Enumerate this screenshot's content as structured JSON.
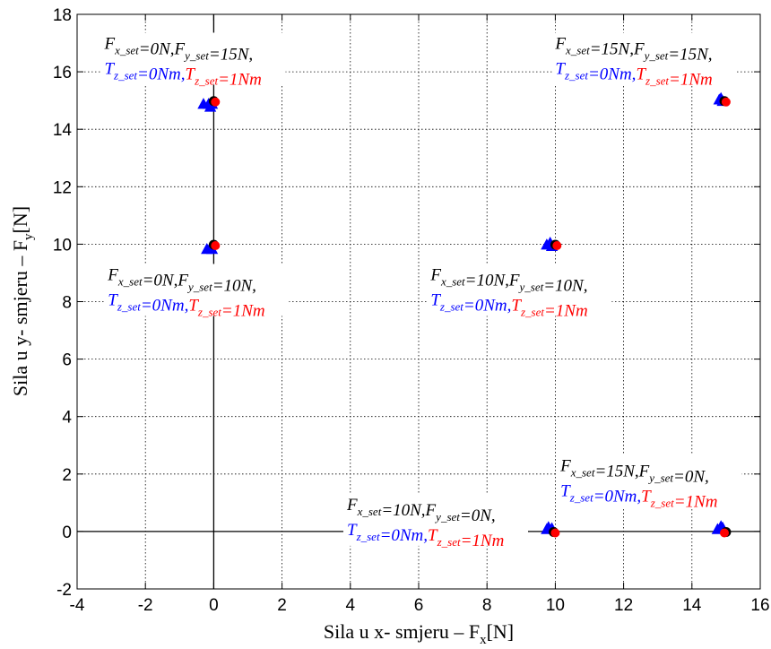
{
  "chart_data": {
    "type": "scatter",
    "xlabel": {
      "main": "Sila u x- smjeru  –  F",
      "sub": "x",
      "unit": "[N]"
    },
    "ylabel": {
      "main": "Sila u y- smjeru  –  F",
      "sub": "y",
      "unit": "[N]"
    },
    "xlim": [
      -4,
      16
    ],
    "ylim": [
      -2,
      18
    ],
    "xticks": [
      -4,
      -2,
      0,
      2,
      4,
      6,
      8,
      10,
      12,
      14,
      16
    ],
    "yticks": [
      -2,
      0,
      2,
      4,
      6,
      8,
      10,
      12,
      14,
      16,
      18
    ],
    "grid": true,
    "zero_lines": true,
    "colors": {
      "blue": "#0000ff",
      "red": "#ff0000",
      "black": "#000000"
    },
    "groups": [
      {
        "target": [
          0,
          15
        ],
        "blue": [
          [
            -0.3,
            14.85
          ],
          [
            -0.15,
            14.85
          ],
          [
            -0.05,
            14.85
          ],
          [
            -0.1,
            14.75
          ]
        ],
        "red": [
          [
            0.05,
            14.95
          ]
        ],
        "black": [
          [
            0.0,
            14.98
          ]
        ],
        "annotation": {
          "ax": -3.2,
          "ay": 16.8,
          "l1": {
            "a": "F",
            "as": "x_set",
            "b": "=0N,F",
            "bs": "y_set",
            "c": "=15N,"
          },
          "l2": {
            "a": "T",
            "as": "z_set",
            "b": "=0Nm,",
            "c": "T",
            "cs": "z_set",
            "d": "=1Nm"
          }
        }
      },
      {
        "target": [
          0,
          10
        ],
        "blue": [
          [
            -0.2,
            9.8
          ],
          [
            -0.1,
            9.85
          ],
          [
            -0.05,
            9.8
          ]
        ],
        "red": [
          [
            0.05,
            9.95
          ]
        ],
        "black": [
          [
            0.0,
            9.98
          ]
        ],
        "annotation": {
          "ax": -3.1,
          "ay": 8.75,
          "l1": {
            "a": "F",
            "as": "x_set",
            "b": "=0N,F",
            "bs": "y_set",
            "c": "=10N,"
          },
          "l2": {
            "a": "T",
            "as": "z_set",
            "b": "=0Nm,",
            "c": "T",
            "cs": "z_set",
            "d": "=1Nm"
          }
        }
      },
      {
        "target": [
          10,
          10
        ],
        "blue": [
          [
            9.75,
            9.95
          ],
          [
            9.85,
            10.02
          ],
          [
            9.9,
            9.9
          ]
        ],
        "red": [
          [
            10.05,
            9.95
          ]
        ],
        "black": [
          [
            10.0,
            9.98
          ]
        ],
        "annotation": {
          "ax": 6.35,
          "ay": 8.75,
          "l1": {
            "a": "F",
            "as": "x_set",
            "b": "=10N,F",
            "bs": "y_set",
            "c": "=10N,"
          },
          "l2": {
            "a": "T",
            "as": "z_set",
            "b": "=0Nm,",
            "c": "T",
            "cs": "z_set",
            "d": "=1Nm"
          }
        }
      },
      {
        "target": [
          15,
          15
        ],
        "blue": [
          [
            14.8,
            15.0
          ],
          [
            14.85,
            15.05
          ],
          [
            14.9,
            14.95
          ]
        ],
        "red": [
          [
            15.0,
            14.95
          ]
        ],
        "black": [
          [
            14.95,
            14.98
          ]
        ],
        "annotation": {
          "ax": 10.0,
          "ay": 16.8,
          "l1": {
            "a": "F",
            "as": "x_set",
            "b": "=15N,F",
            "bs": "y_set",
            "c": "=15N,"
          },
          "l2": {
            "a": "T",
            "as": "z_set",
            "b": "=0Nm,",
            "c": "T",
            "cs": "z_set",
            "d": "=1Nm"
          }
        }
      },
      {
        "target": [
          10,
          0
        ],
        "blue": [
          [
            9.75,
            0.05
          ],
          [
            9.8,
            0.12
          ],
          [
            9.9,
            0.08
          ]
        ],
        "red": [
          [
            10.0,
            -0.05
          ]
        ],
        "black": [
          [
            9.95,
            -0.02
          ]
        ],
        "annotation": {
          "ax": 3.9,
          "ay": 0.75,
          "l1": {
            "a": "F",
            "as": "x_set",
            "b": "=10N,F",
            "bs": "y_set",
            "c": "=0N,"
          },
          "l2": {
            "a": "T",
            "as": "z_set",
            "b": "=0Nm,",
            "c": "T",
            "cs": "z_set",
            "d": "=1Nm"
          }
        }
      },
      {
        "target": [
          15,
          0
        ],
        "blue": [
          [
            14.75,
            0.05
          ],
          [
            14.85,
            0.15
          ],
          [
            14.9,
            0.1
          ]
        ],
        "red": [
          [
            14.95,
            -0.05
          ]
        ],
        "black": [
          [
            15.0,
            -0.02
          ]
        ],
        "annotation": {
          "ax": 10.15,
          "ay": 2.1,
          "l1": {
            "a": "F",
            "as": "x_set",
            "b": "=15N,F",
            "bs": "y_set",
            "c": "=0N,"
          },
          "l2": {
            "a": "T",
            "as": "z_set",
            "b": "=0Nm,",
            "c": "T",
            "cs": "z_set",
            "d": "=1Nm"
          }
        }
      }
    ]
  }
}
